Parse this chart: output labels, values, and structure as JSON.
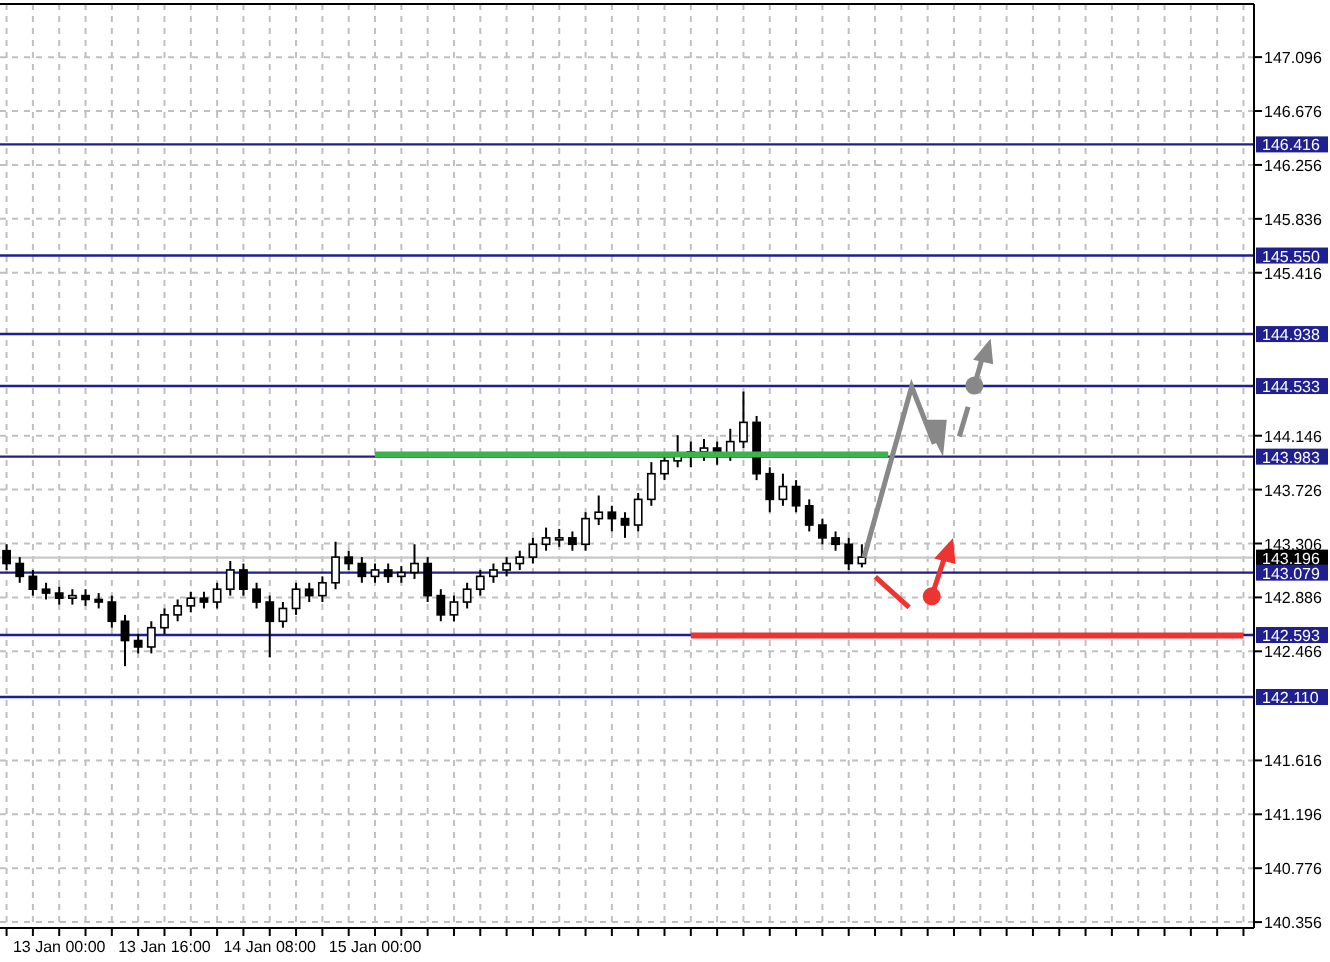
{
  "chart_data": {
    "type": "candlestick",
    "grid": true,
    "categories": [
      null,
      null,
      null,
      null,
      "13 Jan 00:00",
      null,
      null,
      null,
      null,
      null,
      null,
      null,
      "13 Jan 16:00",
      null,
      null,
      null,
      null,
      null,
      null,
      null,
      "14 Jan 08:00",
      null,
      null,
      null,
      null,
      null,
      null,
      null,
      "15 Jan 00:00",
      null,
      null,
      null,
      null,
      null,
      null,
      null,
      null,
      null,
      null,
      null,
      null,
      null,
      null,
      null,
      null,
      null,
      null,
      null,
      null,
      null,
      null,
      null,
      null,
      null,
      null,
      null,
      null,
      null,
      null,
      null,
      null,
      null,
      null,
      null,
      null,
      null,
      null,
      null,
      null,
      null,
      null,
      null,
      null,
      null,
      null,
      null,
      null,
      null,
      null,
      null,
      null,
      null,
      null,
      null,
      null,
      null,
      null,
      null,
      null,
      null,
      null,
      null,
      null,
      null,
      null
    ],
    "ylim": [
      140.31,
      147.51
    ],
    "yticks": [
      147.096,
      146.676,
      146.256,
      145.836,
      145.416,
      144.146,
      143.726,
      143.306,
      142.886,
      142.466,
      141.616,
      141.196,
      140.776,
      140.356
    ],
    "ref_lines": [
      {
        "axis": "y",
        "value": 146.416,
        "label": "146.416",
        "color": "#1f1f8f"
      },
      {
        "axis": "y",
        "value": 145.55,
        "label": "145.550",
        "color": "#1f1f8f"
      },
      {
        "axis": "y",
        "value": 144.938,
        "label": "144.938",
        "color": "#1f1f8f"
      },
      {
        "axis": "y",
        "value": 144.533,
        "label": "144.533",
        "color": "#1f1f8f"
      },
      {
        "axis": "y",
        "value": 143.983,
        "label": "143.983",
        "color": "#1f1f8f"
      },
      {
        "axis": "y",
        "value": 143.196,
        "label": "143.196",
        "color": "#c8c8c8"
      },
      {
        "axis": "y",
        "value": 143.079,
        "label": "143.079",
        "color": "#1f1f8f"
      },
      {
        "axis": "y",
        "value": 142.593,
        "label": "142.593",
        "color": "#1f1f8f"
      },
      {
        "axis": "y",
        "value": 142.11,
        "label": "142.110",
        "color": "#1f1f8f"
      }
    ],
    "series": [
      {
        "color": "#000000",
        "ohlc": [
          [
            143.25,
            143.3,
            143.1,
            143.15
          ],
          [
            143.15,
            143.2,
            143.0,
            143.05
          ],
          [
            143.05,
            143.1,
            142.9,
            142.95
          ],
          [
            142.95,
            143.0,
            142.87,
            142.92
          ],
          [
            142.92,
            142.97,
            142.83,
            142.88
          ],
          [
            142.88,
            142.95,
            142.83,
            142.9
          ],
          [
            142.9,
            142.95,
            142.82,
            142.87
          ],
          [
            142.87,
            142.92,
            142.8,
            142.85
          ],
          [
            142.85,
            142.9,
            142.65,
            142.7
          ],
          [
            142.7,
            142.75,
            142.35,
            142.55
          ],
          [
            142.55,
            142.6,
            142.45,
            142.5
          ],
          [
            142.5,
            142.7,
            142.45,
            142.65
          ],
          [
            142.65,
            142.8,
            142.6,
            142.75
          ],
          [
            142.75,
            142.87,
            142.7,
            142.82
          ],
          [
            142.82,
            142.93,
            142.77,
            142.88
          ],
          [
            142.88,
            142.93,
            142.8,
            142.85
          ],
          [
            142.85,
            143.0,
            142.8,
            142.95
          ],
          [
            142.95,
            143.17,
            142.9,
            143.1
          ],
          [
            143.1,
            143.15,
            142.9,
            142.95
          ],
          [
            142.95,
            143.0,
            142.8,
            142.85
          ],
          [
            142.85,
            142.9,
            142.42,
            142.7
          ],
          [
            142.7,
            142.85,
            142.65,
            142.8
          ],
          [
            142.8,
            143.0,
            142.75,
            142.95
          ],
          [
            142.95,
            143.0,
            142.85,
            142.9
          ],
          [
            142.9,
            143.05,
            142.85,
            143.0
          ],
          [
            143.0,
            143.32,
            142.95,
            143.2
          ],
          [
            143.2,
            143.25,
            143.1,
            143.15
          ],
          [
            143.15,
            143.2,
            143.0,
            143.05
          ],
          [
            143.05,
            143.15,
            143.0,
            143.1
          ],
          [
            143.1,
            143.15,
            143.0,
            143.05
          ],
          [
            143.05,
            143.13,
            143.0,
            143.08
          ],
          [
            143.08,
            143.3,
            143.03,
            143.15
          ],
          [
            143.15,
            143.2,
            142.85,
            142.9
          ],
          [
            142.9,
            142.95,
            142.7,
            142.75
          ],
          [
            142.75,
            142.9,
            142.7,
            142.85
          ],
          [
            142.85,
            143.0,
            142.8,
            142.95
          ],
          [
            142.95,
            143.1,
            142.9,
            143.05
          ],
          [
            143.05,
            143.15,
            143.0,
            143.1
          ],
          [
            143.1,
            143.2,
            143.05,
            143.15
          ],
          [
            143.15,
            143.25,
            143.1,
            143.2
          ],
          [
            143.2,
            143.35,
            143.15,
            143.3
          ],
          [
            143.3,
            143.43,
            143.25,
            143.35
          ],
          [
            143.35,
            143.42,
            143.28,
            143.35
          ],
          [
            143.35,
            143.4,
            143.25,
            143.3
          ],
          [
            143.3,
            143.55,
            143.25,
            143.5
          ],
          [
            143.5,
            143.68,
            143.45,
            143.55
          ],
          [
            143.55,
            143.6,
            143.4,
            143.5
          ],
          [
            143.5,
            143.55,
            143.35,
            143.45
          ],
          [
            143.45,
            143.7,
            143.4,
            143.65
          ],
          [
            143.65,
            143.94,
            143.6,
            143.85
          ],
          [
            143.85,
            144.0,
            143.8,
            143.95
          ],
          [
            143.95,
            144.15,
            143.9,
            144.0
          ],
          [
            144.0,
            144.1,
            143.9,
            144.02
          ],
          [
            144.02,
            144.12,
            143.95,
            144.05
          ],
          [
            144.05,
            144.1,
            143.92,
            144.0
          ],
          [
            144.0,
            144.2,
            143.95,
            144.1
          ],
          [
            144.1,
            144.49,
            144.05,
            144.25
          ],
          [
            144.25,
            144.3,
            143.8,
            143.85
          ],
          [
            143.85,
            143.9,
            143.55,
            143.65
          ],
          [
            143.65,
            143.85,
            143.6,
            143.75
          ],
          [
            143.75,
            143.8,
            143.55,
            143.6
          ],
          [
            143.6,
            143.65,
            143.4,
            143.45
          ],
          [
            143.45,
            143.5,
            143.3,
            143.35
          ],
          [
            143.35,
            143.4,
            143.25,
            143.3
          ],
          [
            143.3,
            143.35,
            143.1,
            143.15
          ],
          [
            143.15,
            143.3,
            143.12,
            143.2
          ],
          null,
          null,
          null,
          null,
          null,
          null,
          null,
          null,
          null,
          null,
          null,
          null,
          null,
          null,
          null,
          null,
          null,
          null,
          null,
          null,
          null,
          null,
          null,
          null,
          null,
          null,
          null,
          null,
          null
        ]
      },
      {
        "type": "line",
        "color": "#3cb44b",
        "values": [
          null,
          null,
          null,
          null,
          null,
          null,
          null,
          null,
          null,
          null,
          null,
          null,
          null,
          null,
          null,
          null,
          null,
          null,
          null,
          null,
          null,
          null,
          null,
          null,
          null,
          null,
          null,
          null,
          144.0,
          144.0,
          144.0,
          144.0,
          144.0,
          144.0,
          144.0,
          144.0,
          144.0,
          144.0,
          144.0,
          144.0,
          144.0,
          144.0,
          144.0,
          144.0,
          144.0,
          144.0,
          144.0,
          144.0,
          144.0,
          144.0,
          144.0,
          144.0,
          144.0,
          144.0,
          144.0,
          144.0,
          144.0,
          144.0,
          144.0,
          144.0,
          144.0,
          144.0,
          144.0,
          144.0,
          144.0,
          144.0,
          144.0,
          144.0,
          null,
          null,
          null,
          null,
          null,
          null,
          null,
          null,
          null,
          null,
          null,
          null,
          null,
          null,
          null,
          null,
          null,
          null,
          null,
          null,
          null,
          null,
          null,
          null,
          null,
          null,
          null
        ]
      },
      {
        "type": "line",
        "color": "#ee3333",
        "values": [
          null,
          null,
          null,
          null,
          null,
          null,
          null,
          null,
          null,
          null,
          null,
          null,
          null,
          null,
          null,
          null,
          null,
          null,
          null,
          null,
          null,
          null,
          null,
          null,
          null,
          null,
          null,
          null,
          null,
          null,
          null,
          null,
          null,
          null,
          null,
          null,
          null,
          null,
          null,
          null,
          null,
          null,
          null,
          null,
          null,
          null,
          null,
          null,
          null,
          null,
          null,
          null,
          142.59,
          142.59,
          142.59,
          142.59,
          142.59,
          142.59,
          142.59,
          142.59,
          142.59,
          142.59,
          142.59,
          142.59,
          142.59,
          142.59,
          142.59,
          142.59,
          142.59,
          142.59,
          142.59,
          142.59,
          142.59,
          142.59,
          142.59,
          142.59,
          142.59,
          142.59,
          142.59,
          142.59,
          142.59,
          142.59,
          142.59,
          142.59,
          142.59,
          142.59,
          142.59,
          142.59,
          142.59,
          142.59,
          142.59,
          142.59,
          142.59,
          142.59,
          142.59
        ]
      }
    ]
  }
}
